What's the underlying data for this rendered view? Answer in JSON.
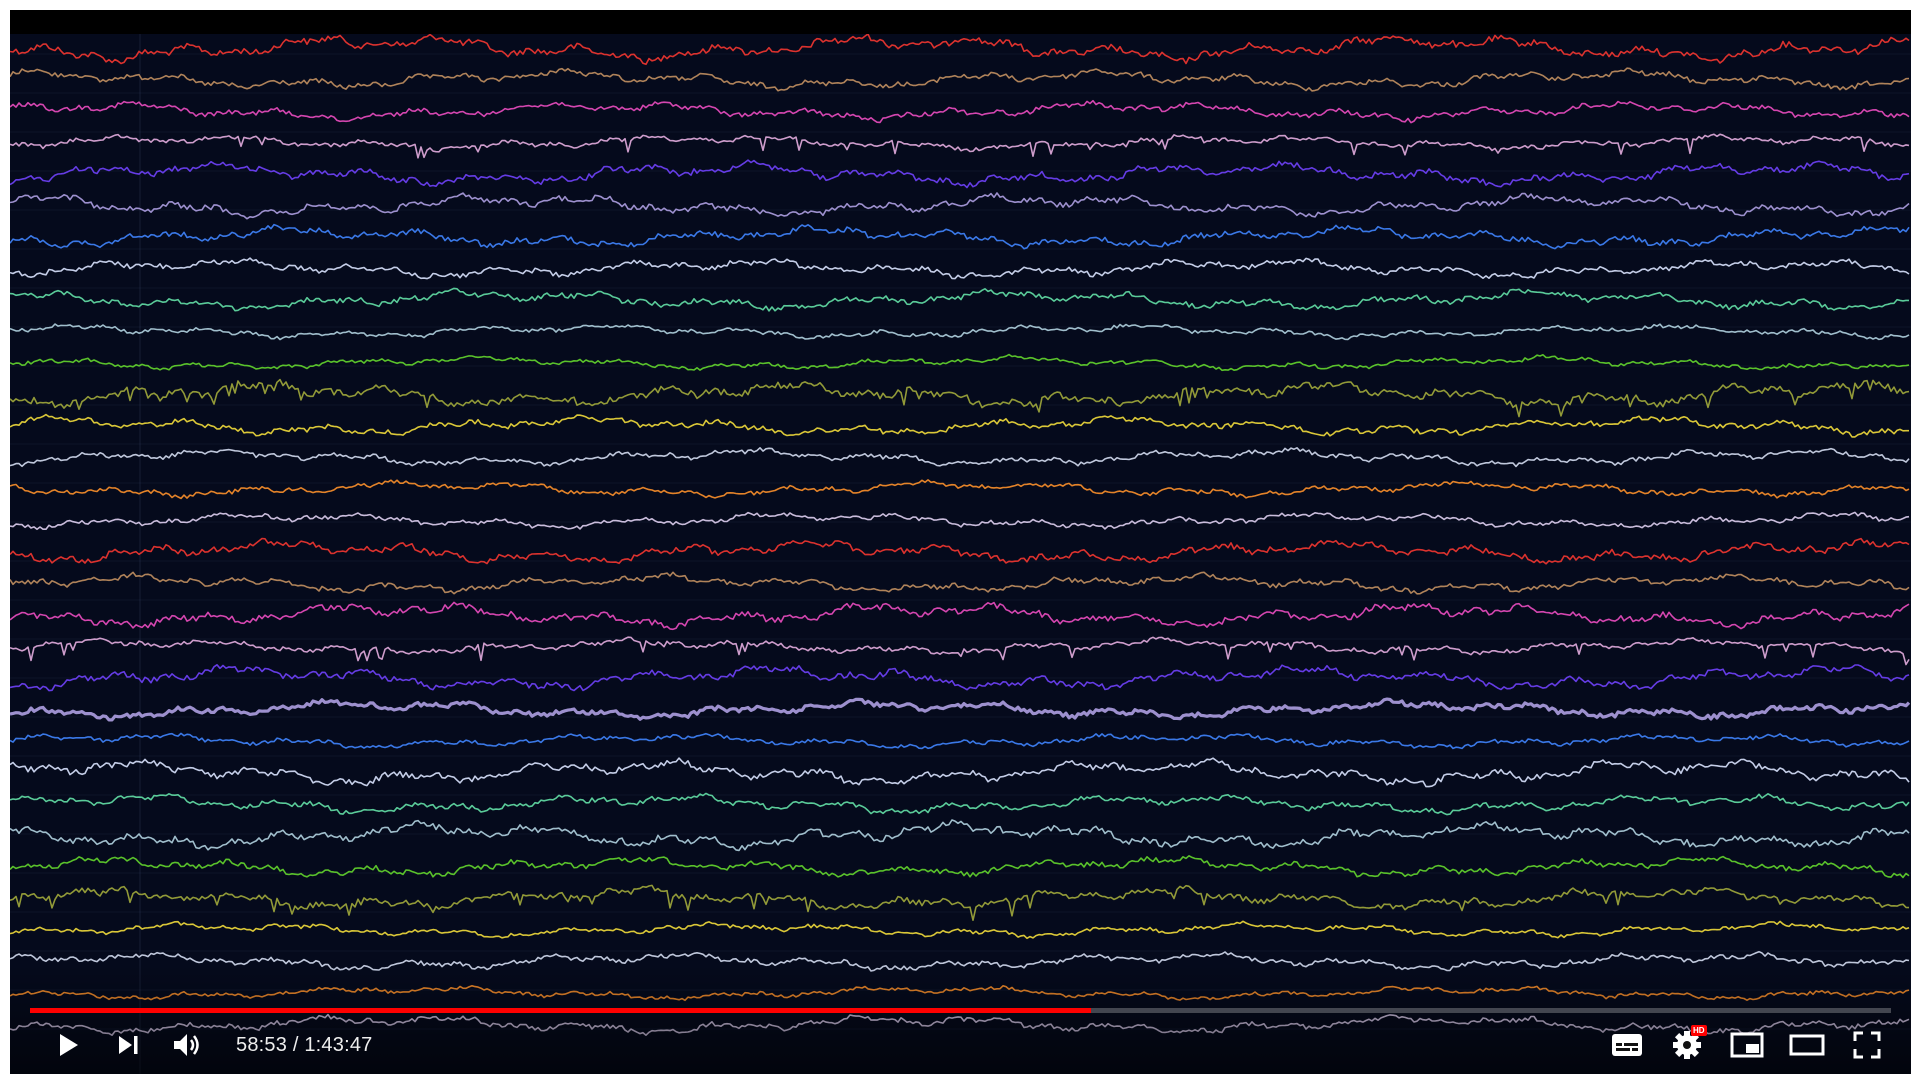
{
  "player": {
    "time_current": "58:53",
    "time_separator": " / ",
    "time_total": "1:43:47",
    "progress_played_fraction": 0.57,
    "progress_loaded_fraction": 0.57,
    "hd_badge": "HD",
    "colors": {
      "progress_played": "#ff0000",
      "background": "#050a1c"
    }
  },
  "controls": {
    "play_icon": "play-icon",
    "next_icon": "skip-next-icon",
    "volume_icon": "volume-icon",
    "subtitles_icon": "subtitles-icon",
    "settings_icon": "gear-icon",
    "miniplayer_icon": "miniplayer-icon",
    "theater_icon": "theater-mode-icon",
    "fullscreen_icon": "fullscreen-icon"
  },
  "eeg_traces": {
    "colors": [
      "#e8352f",
      "#b98a5e",
      "#e04ab8",
      "#d9a5d6",
      "#6a3ff0",
      "#a598d8",
      "#3d7ef2",
      "#cfd8f2",
      "#5fd6a0",
      "#a9c8d6",
      "#5fcc2c",
      "#9aa23a",
      "#e6d23a",
      "#c9d2e6",
      "#f08a2a",
      "#d4c6e6"
    ]
  }
}
